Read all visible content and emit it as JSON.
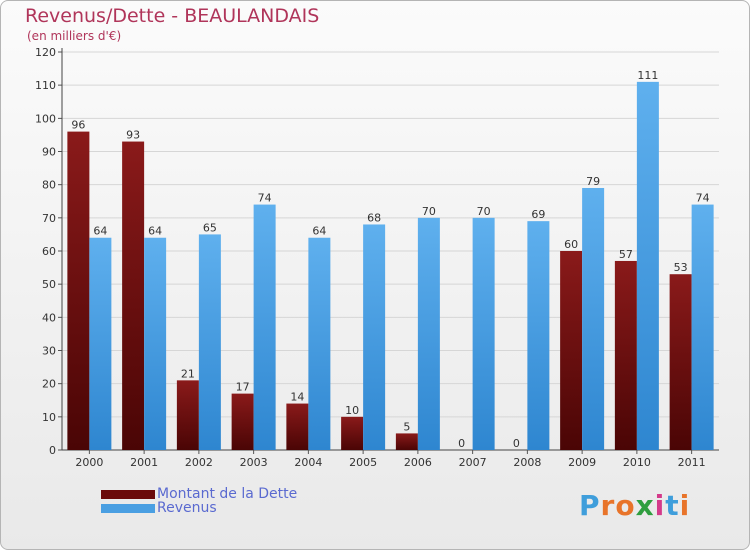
{
  "header": {
    "title": "Revenus/Dette - BEAULANDAIS",
    "subtitle": "(en milliers d'€)"
  },
  "chart_data": {
    "type": "bar",
    "categories": [
      "2000",
      "2001",
      "2002",
      "2003",
      "2004",
      "2005",
      "2006",
      "2007",
      "2008",
      "2009",
      "2010",
      "2011"
    ],
    "series": [
      {
        "name": "Montant de la Dette",
        "color": "#6b0a0a",
        "values": [
          96,
          93,
          21,
          17,
          14,
          10,
          5,
          0,
          0,
          60,
          57,
          53
        ]
      },
      {
        "name": "Revenus",
        "color": "#4a9fe2",
        "values": [
          64,
          64,
          65,
          74,
          64,
          68,
          70,
          70,
          69,
          79,
          111,
          74
        ]
      }
    ],
    "ylim": [
      0,
      120
    ],
    "yticks": [
      0,
      10,
      20,
      30,
      40,
      50,
      60,
      70,
      80,
      90,
      100,
      110,
      120
    ],
    "grid": true,
    "legend": "bottom-left"
  },
  "logo": {
    "text": "Proxiti",
    "letter_colors": [
      "#3f9edb",
      "#e8742a",
      "#e8742a",
      "#2f9e3f",
      "#d43a8a",
      "#3f9edb",
      "#e8742a"
    ]
  }
}
